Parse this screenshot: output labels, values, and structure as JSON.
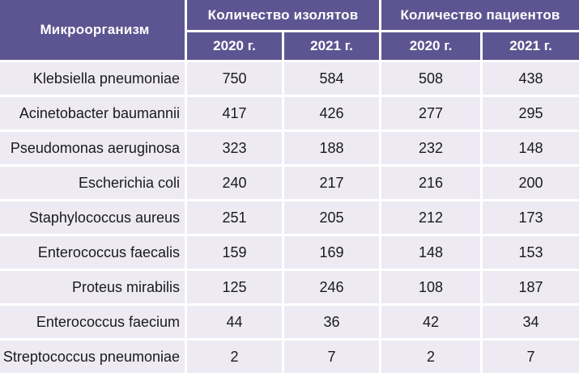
{
  "header": {
    "organism": "Микроорганизм",
    "isolates_group": "Количество изолятов",
    "patients_group": "Количество пациентов",
    "years": [
      "2020 г.",
      "2021 г.",
      "2020 г.",
      "2021 г."
    ]
  },
  "rows": [
    {
      "name": "Klebsiella pneumoniae",
      "values": [
        "750",
        "584",
        "508",
        "438"
      ]
    },
    {
      "name": "Acinetobacter baumannii",
      "values": [
        "417",
        "426",
        "277",
        "295"
      ]
    },
    {
      "name": "Pseudomonas aeruginosa",
      "values": [
        "323",
        "188",
        "232",
        "148"
      ]
    },
    {
      "name": "Escherichia coli",
      "values": [
        "240",
        "217",
        "216",
        "200"
      ]
    },
    {
      "name": "Staphylococcus aureus",
      "values": [
        "251",
        "205",
        "212",
        "173"
      ]
    },
    {
      "name": "Enterococcus faecalis",
      "values": [
        "159",
        "169",
        "148",
        "153"
      ]
    },
    {
      "name": "Proteus mirabilis",
      "values": [
        "125",
        "246",
        "108",
        "187"
      ]
    },
    {
      "name": "Enterococcus faecium",
      "values": [
        "44",
        "36",
        "42",
        "34"
      ]
    },
    {
      "name": "Streptococcus pneumoniae",
      "values": [
        "2",
        "7",
        "2",
        "7"
      ]
    }
  ],
  "colors": {
    "header_bg": "#5d5591",
    "header_text": "#ffffff",
    "cell_bg": "#edeaf4",
    "cell_text": "#1a1a1a"
  }
}
